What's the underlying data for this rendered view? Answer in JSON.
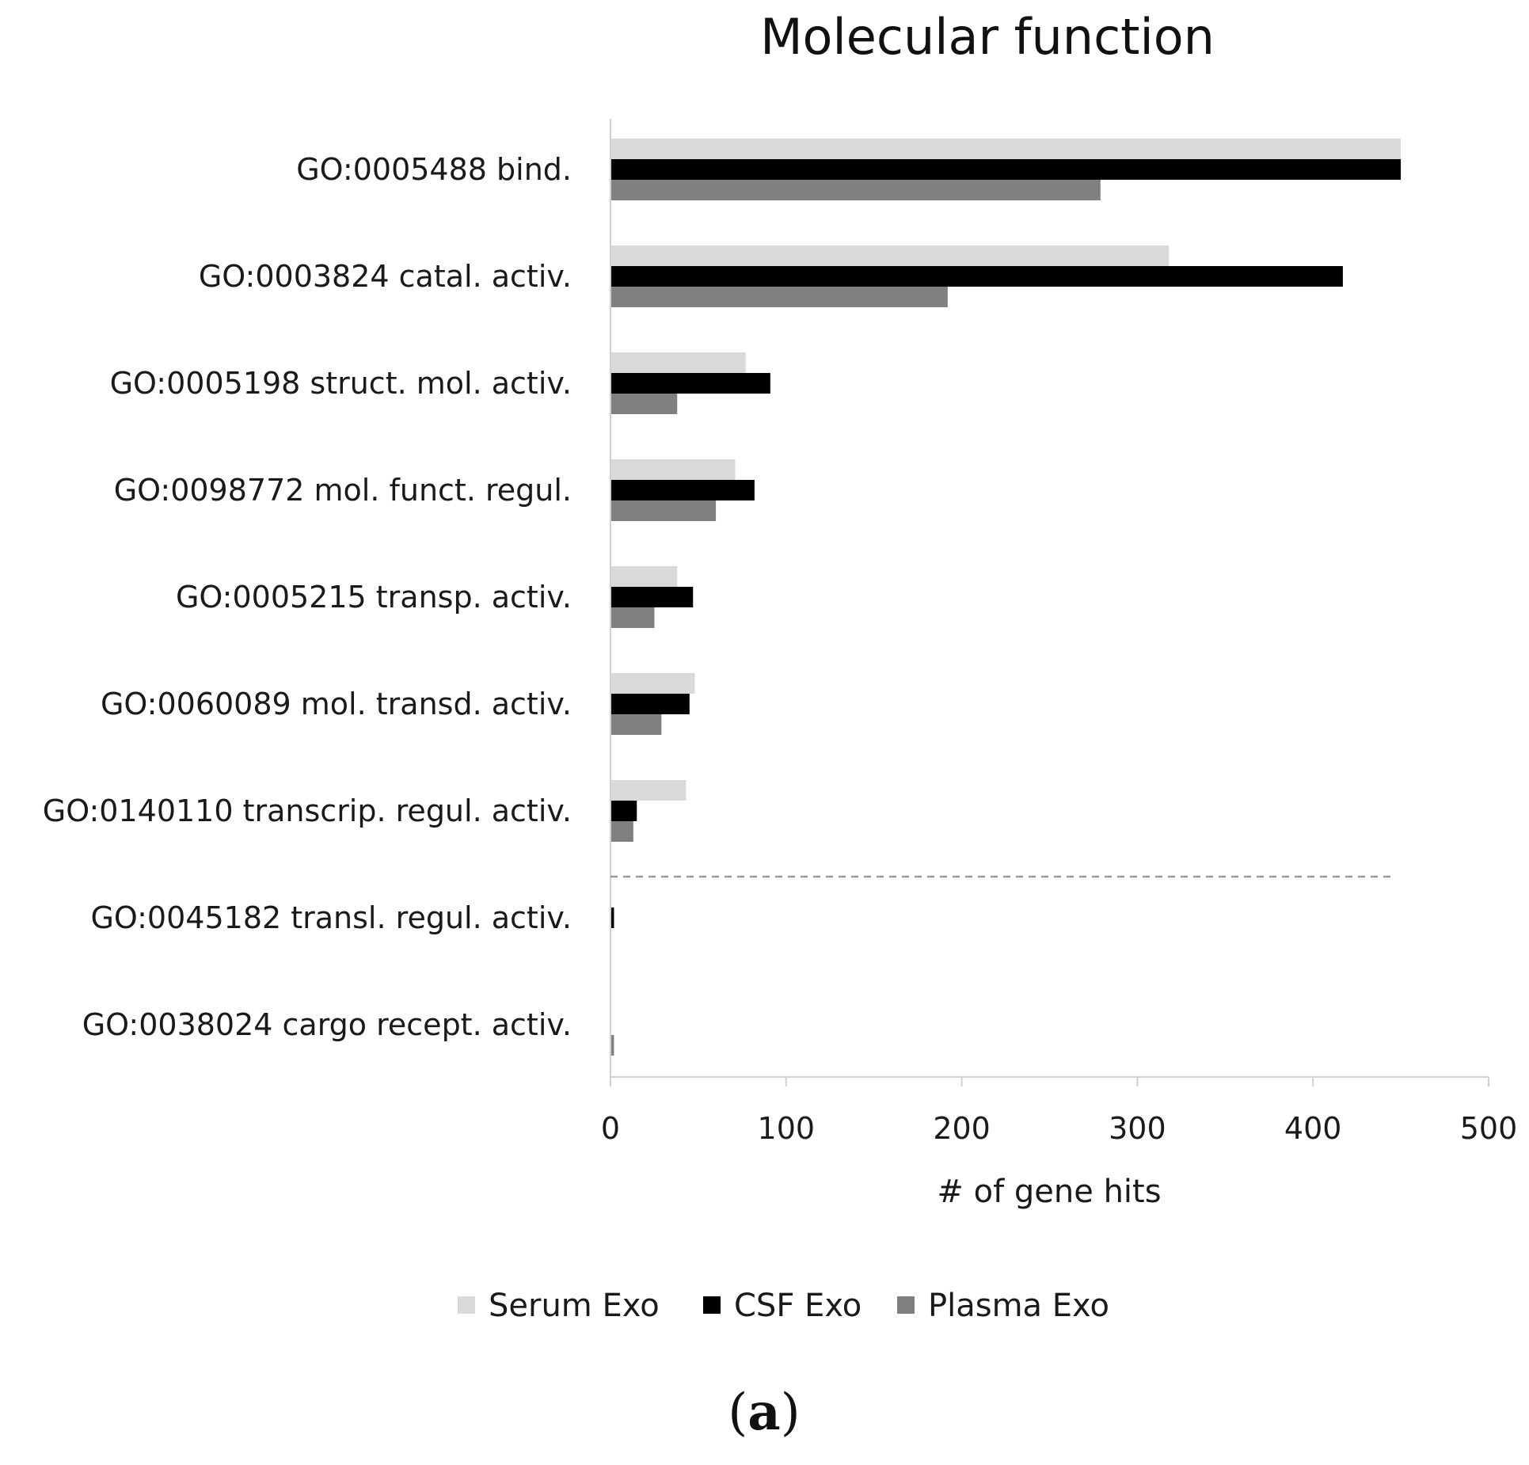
{
  "chart_data": {
    "type": "bar",
    "orientation": "horizontal",
    "title": "Molecular function",
    "xlabel": "# of gene hits",
    "ylabel": "",
    "xlim": [
      0,
      500
    ],
    "xticks": [
      "0",
      "100",
      "200",
      "300",
      "400",
      "500"
    ],
    "grid": false,
    "legend_position": "bottom",
    "categories": [
      "GO:0005488 bind.",
      "GO:0003824 catal. activ.",
      "GO:0005198 struct. mol. activ.",
      "GO:0098772 mol. funct. regul.",
      "GO:0005215 transp. activ.",
      "GO:0060089 mol. transd. activ.",
      "GO:0140110 transcrip. regul. activ.",
      "GO:0045182 transl. regul. activ.",
      "GO:0038024 cargo recept. activ."
    ],
    "series": [
      {
        "name": "Serum Exo",
        "color": "#d9d9d9",
        "values": [
          450,
          318,
          77,
          71,
          38,
          48,
          43,
          0,
          0
        ]
      },
      {
        "name": "CSF Exo",
        "color": "#000000",
        "values": [
          450,
          417,
          91,
          82,
          47,
          45,
          15,
          2,
          0
        ]
      },
      {
        "name": "Plasma Exo",
        "color": "#808080",
        "values": [
          279,
          192,
          38,
          60,
          25,
          29,
          13,
          0,
          2
        ]
      }
    ],
    "threshold_line": {
      "style": "dashed",
      "between": [
        "GO:0140110 transcrip. regul. activ.",
        "GO:0045182 transl. regul. activ."
      ]
    },
    "panel_label": {
      "open": "(",
      "letter": "a",
      "close": ")"
    }
  }
}
